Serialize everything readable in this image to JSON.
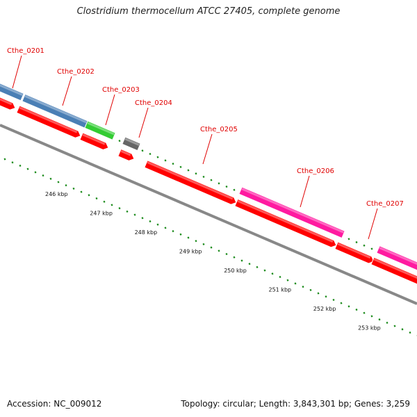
{
  "title": "Clostridium thermocellum ATCC 27405, complete genome",
  "footer": {
    "accession": "Accession: NC_009012",
    "topology": "Topology: circular; Length: 3,843,301 bp; Genes: 3,259"
  },
  "colors": {
    "cds_forward": "#ff0000",
    "backbone": "#888888",
    "ticks": "#1a8a1a",
    "label": "#e00000",
    "blue_gene": "#4a7fb5",
    "green_gene": "#33cc33",
    "gray_gene": "#666666",
    "magenta_gene": "#ff1aa0"
  },
  "gene_labels": [
    "Cthe_0201",
    "Cthe_0202",
    "Cthe_0203",
    "Cthe_0204",
    "Cthe_0205",
    "Cthe_0206",
    "Cthe_0207"
  ],
  "scale_labels": [
    "246 kbp",
    "247 kbp",
    "248 kbp",
    "249 kbp",
    "250 kbp",
    "251 kbp",
    "252 kbp",
    "253 kbp"
  ]
}
